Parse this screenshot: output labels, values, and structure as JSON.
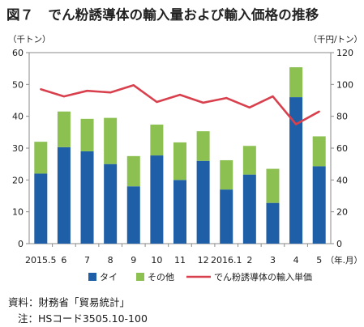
{
  "title": {
    "figure_label": "図７",
    "text": "でん粉誘導体の輸入量および輸入価格の推移"
  },
  "source_text": "資料：財務省「貿易統計」",
  "note_text": "注：HSコード3505.10-100",
  "chart_data": {
    "type": "bar",
    "stacked": true,
    "categories": [
      "2015.5",
      "6",
      "7",
      "8",
      "9",
      "10",
      "11",
      "12",
      "2016.1",
      "2",
      "3",
      "4",
      "5"
    ],
    "x_unit_label": "（年.月）",
    "y_left_label": "（千トン）",
    "y_right_label": "（千円/トン）",
    "y_left_range": [
      0,
      60
    ],
    "y_right_range": [
      0,
      120
    ],
    "y_left_ticks": [
      0,
      10,
      20,
      30,
      40,
      50,
      60
    ],
    "y_right_ticks": [
      0,
      20,
      40,
      60,
      80,
      100,
      120
    ],
    "grid": false,
    "legend_position": "bottom",
    "series": [
      {
        "name": "タイ",
        "kind": "bar",
        "axis": "left",
        "color": "#1f5fa8",
        "values": [
          22,
          30.3,
          29,
          25,
          18,
          27.7,
          20,
          26,
          17,
          21.7,
          12.8,
          46,
          24.3
        ]
      },
      {
        "name": "その他",
        "kind": "bar",
        "axis": "left",
        "color": "#8cc152",
        "values": [
          10,
          11.2,
          10.2,
          14.5,
          9.5,
          9.7,
          11.8,
          9.3,
          9.2,
          9,
          10.7,
          9.4,
          9.4
        ]
      },
      {
        "name": "でん粉誘導体の輸入単価",
        "kind": "line",
        "axis": "right",
        "color": "#d9404d",
        "values": [
          97,
          92.5,
          96,
          95,
          99.5,
          89,
          93.5,
          88.5,
          91.5,
          85.5,
          92.5,
          75,
          83
        ]
      }
    ]
  }
}
